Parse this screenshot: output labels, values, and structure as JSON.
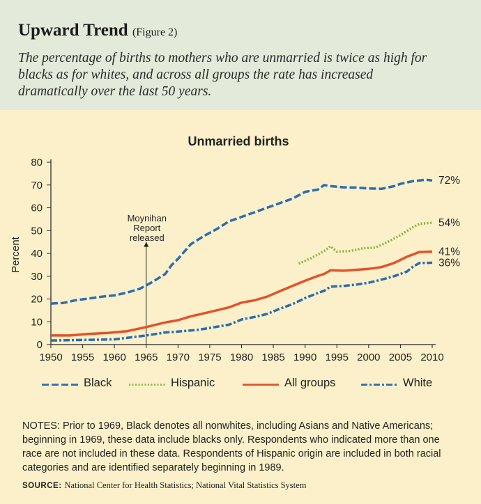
{
  "header": {
    "title": "Upward Trend",
    "figure_label": "(Figure 2)",
    "subtitle": "The percentage of births to mothers who are unmarried is twice as high for blacks as for whites, and across all groups the rate has increased dramatically over the last 50 years."
  },
  "colors": {
    "header_bg": "#e3ead9",
    "page_bg": "#fbf0c9",
    "black_series": "#2a6db1",
    "hispanic_series": "#86b43e",
    "all_groups_series": "#e2532b",
    "white_series": "#2a6db1"
  },
  "chart_data": {
    "type": "line",
    "title": "Unmarried births",
    "xlabel": "",
    "ylabel": "Percent",
    "xlim": [
      1950,
      2010
    ],
    "ylim": [
      0,
      80
    ],
    "xticks": [
      1950,
      1955,
      1960,
      1965,
      1970,
      1975,
      1980,
      1985,
      1990,
      1995,
      2000,
      2005,
      2010
    ],
    "yticks": [
      0,
      10,
      20,
      30,
      40,
      50,
      60,
      70,
      80
    ],
    "annotation": {
      "x": 1965,
      "text": [
        "Moynihan",
        "Report",
        "released"
      ]
    },
    "series": [
      {
        "name": "Black",
        "style": "dashed",
        "end_label": "72%",
        "points": [
          [
            1950,
            18
          ],
          [
            1952,
            18.3
          ],
          [
            1954,
            19.5
          ],
          [
            1956,
            20.2
          ],
          [
            1958,
            21
          ],
          [
            1960,
            21.6
          ],
          [
            1962,
            22.8
          ],
          [
            1964,
            24.5
          ],
          [
            1966,
            27.5
          ],
          [
            1968,
            31
          ],
          [
            1969,
            34.9
          ],
          [
            1970,
            37.6
          ],
          [
            1972,
            44
          ],
          [
            1974,
            47.5
          ],
          [
            1976,
            50.5
          ],
          [
            1978,
            54
          ],
          [
            1980,
            56
          ],
          [
            1982,
            58
          ],
          [
            1984,
            60
          ],
          [
            1986,
            62
          ],
          [
            1988,
            64
          ],
          [
            1990,
            67
          ],
          [
            1992,
            68
          ],
          [
            1993,
            70
          ],
          [
            1994,
            69.5
          ],
          [
            1996,
            69
          ],
          [
            1998,
            68.9
          ],
          [
            2000,
            68.5
          ],
          [
            2002,
            68.3
          ],
          [
            2004,
            69.5
          ],
          [
            2005,
            70.5
          ],
          [
            2007,
            71.7
          ],
          [
            2009,
            72.3
          ],
          [
            2010,
            72
          ]
        ]
      },
      {
        "name": "Hispanic",
        "style": "dotted",
        "end_label": "54%",
        "points": [
          [
            1989,
            35.5
          ],
          [
            1991,
            38
          ],
          [
            1993,
            41
          ],
          [
            1994,
            43.1
          ],
          [
            1995,
            40.8
          ],
          [
            1997,
            41
          ],
          [
            1999,
            42.2
          ],
          [
            2001,
            42.5
          ],
          [
            2003,
            45
          ],
          [
            2005,
            48
          ],
          [
            2007,
            51.5
          ],
          [
            2008,
            53
          ],
          [
            2009,
            53.2
          ],
          [
            2010,
            53.4
          ]
        ]
      },
      {
        "name": "All groups",
        "style": "solid",
        "end_label": "41%",
        "points": [
          [
            1950,
            4
          ],
          [
            1953,
            4
          ],
          [
            1956,
            4.7
          ],
          [
            1959,
            5.1
          ],
          [
            1962,
            5.9
          ],
          [
            1965,
            7.7
          ],
          [
            1968,
            9.7
          ],
          [
            1970,
            10.7
          ],
          [
            1972,
            12.4
          ],
          [
            1975,
            14.3
          ],
          [
            1978,
            16.3
          ],
          [
            1980,
            18.4
          ],
          [
            1982,
            19.4
          ],
          [
            1984,
            21
          ],
          [
            1986,
            23.4
          ],
          [
            1988,
            25.7
          ],
          [
            1990,
            28
          ],
          [
            1992,
            30.1
          ],
          [
            1993,
            31
          ],
          [
            1994,
            32.6
          ],
          [
            1996,
            32.4
          ],
          [
            1998,
            32.8
          ],
          [
            2000,
            33.2
          ],
          [
            2002,
            34
          ],
          [
            2004,
            35.8
          ],
          [
            2006,
            38.5
          ],
          [
            2008,
            40.6
          ],
          [
            2010,
            40.8
          ]
        ]
      },
      {
        "name": "White",
        "style": "dash-dot",
        "end_label": "36%",
        "points": [
          [
            1950,
            1.8
          ],
          [
            1955,
            2
          ],
          [
            1960,
            2.3
          ],
          [
            1965,
            4
          ],
          [
            1968,
            5.3
          ],
          [
            1970,
            5.7
          ],
          [
            1973,
            6.4
          ],
          [
            1975,
            7.3
          ],
          [
            1978,
            8.7
          ],
          [
            1980,
            11
          ],
          [
            1982,
            12.1
          ],
          [
            1984,
            13.4
          ],
          [
            1986,
            15.7
          ],
          [
            1988,
            17.7
          ],
          [
            1990,
            20.4
          ],
          [
            1992,
            22.6
          ],
          [
            1993,
            23.6
          ],
          [
            1994,
            25.4
          ],
          [
            1996,
            25.7
          ],
          [
            1998,
            26.3
          ],
          [
            2000,
            27.1
          ],
          [
            2002,
            28.5
          ],
          [
            2004,
            30
          ],
          [
            2006,
            32
          ],
          [
            2007,
            34.2
          ],
          [
            2008,
            35.8
          ],
          [
            2010,
            35.9
          ]
        ]
      }
    ]
  },
  "legend": {
    "items": [
      "Black",
      "Hispanic",
      "All groups",
      "White"
    ]
  },
  "notes": {
    "text": "NOTES: Prior to 1969, Black denotes all nonwhites, including Asians and Native Americans; beginning in 1969, these data include blacks only. Respondents who indicated more than one race are not included in these data. Respondents of Hispanic origin are included in both racial categories and are identified separately beginning in 1989."
  },
  "source": {
    "label": "SOURCE:",
    "text": "National Center for Health Statistics; National Vital Statistics System"
  }
}
